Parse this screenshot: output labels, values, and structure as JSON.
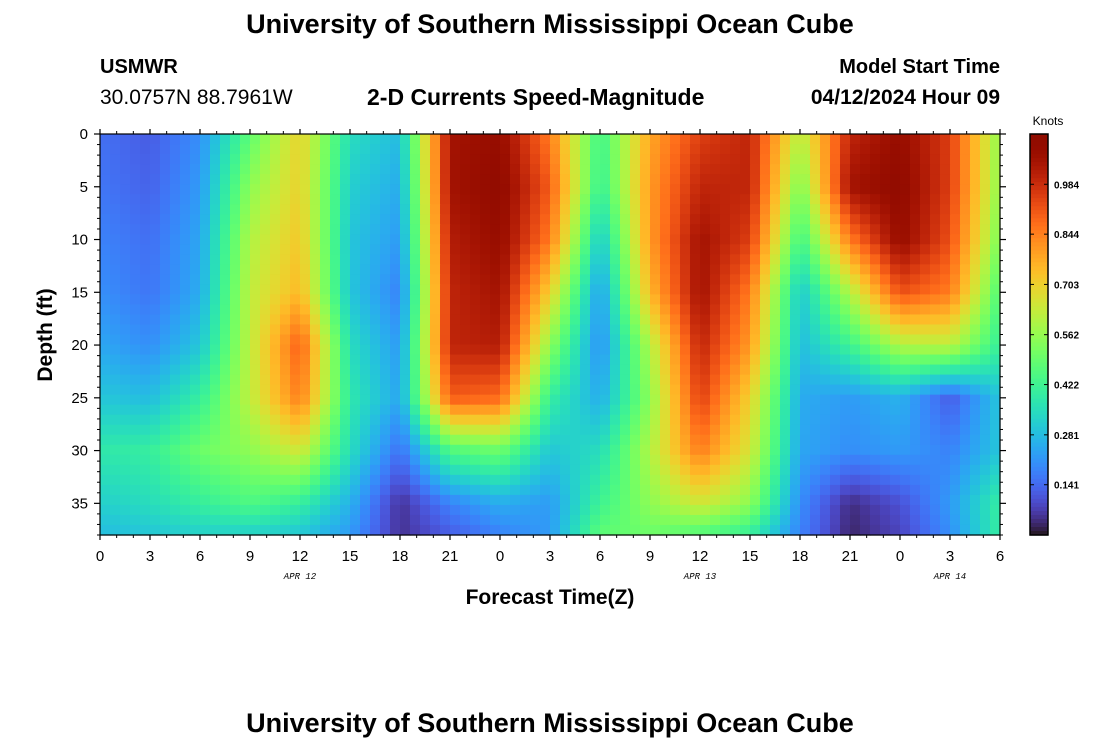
{
  "header": {
    "title": "University of Southern Mississippi Ocean Cube",
    "station_id": "USMWR",
    "station_coords": "30.0757N  88.7961W",
    "plot_title": "2-D Currents Speed-Magnitude",
    "model_start_label": "Model Start Time",
    "model_start_time": "04/12/2024 Hour 09"
  },
  "footer": {
    "title": "University of Southern Mississippi Ocean Cube"
  },
  "chart_data": {
    "type": "heatmap",
    "title": "2-D Currents Speed-Magnitude",
    "xlabel": "Forecast Time(Z)",
    "ylabel": "Depth (ft)",
    "x_unit": "hours since 2024-04-12 00Z",
    "xlim": [
      0,
      54
    ],
    "ylim": [
      0,
      38
    ],
    "y_inverted": true,
    "x_tick_values": [
      0,
      3,
      6,
      9,
      12,
      15,
      18,
      21,
      24,
      27,
      30,
      33,
      36,
      39,
      42,
      45,
      48,
      51,
      54
    ],
    "x_tick_labels": [
      "0",
      "3",
      "6",
      "9",
      "12",
      "15",
      "18",
      "21",
      "0",
      "3",
      "6",
      "9",
      "12",
      "15",
      "18",
      "21",
      "0",
      "3",
      "6"
    ],
    "date_labels": [
      {
        "text": "APR 12",
        "x": 12
      },
      {
        "text": "APR 13",
        "x": 36
      },
      {
        "text": "APR 14",
        "x": 51
      }
    ],
    "y_ticks": [
      0,
      5,
      10,
      15,
      20,
      25,
      30,
      35
    ],
    "colorbar": {
      "label": "Knots",
      "min": 0,
      "max": 1.125,
      "ticks": [
        0.141,
        0.281,
        0.422,
        0.562,
        0.703,
        0.844,
        0.984
      ],
      "colormap": "turbo"
    },
    "depths": [
      0,
      5,
      10,
      15,
      20,
      25,
      30,
      35,
      38
    ],
    "times": [
      0,
      3,
      6,
      9,
      12,
      15,
      18,
      21,
      24,
      27,
      30,
      33,
      36,
      39,
      42,
      45,
      48,
      51,
      54
    ],
    "values": [
      [
        0.15,
        0.12,
        0.2,
        0.48,
        0.7,
        0.35,
        0.28,
        1.05,
        1.08,
        0.85,
        0.42,
        0.78,
        0.95,
        1.0,
        0.6,
        1.0,
        1.08,
        0.95,
        0.55
      ],
      [
        0.16,
        0.13,
        0.22,
        0.55,
        0.7,
        0.32,
        0.25,
        1.05,
        1.1,
        0.9,
        0.4,
        0.8,
        1.0,
        1.0,
        0.52,
        1.05,
        1.1,
        0.95,
        0.55
      ],
      [
        0.18,
        0.15,
        0.24,
        0.6,
        0.72,
        0.3,
        0.22,
        1.02,
        1.08,
        0.85,
        0.3,
        0.8,
        1.05,
        0.95,
        0.42,
        0.85,
        1.08,
        0.92,
        0.52
      ],
      [
        0.2,
        0.16,
        0.25,
        0.62,
        0.75,
        0.3,
        0.18,
        1.0,
        1.05,
        0.7,
        0.22,
        0.75,
        1.05,
        0.85,
        0.3,
        0.6,
        0.92,
        0.85,
        0.45
      ],
      [
        0.24,
        0.2,
        0.3,
        0.62,
        0.9,
        0.35,
        0.22,
        1.0,
        1.02,
        0.55,
        0.2,
        0.6,
        1.0,
        0.8,
        0.28,
        0.42,
        0.6,
        0.62,
        0.4
      ],
      [
        0.3,
        0.28,
        0.4,
        0.62,
        0.85,
        0.38,
        0.24,
        0.9,
        0.88,
        0.4,
        0.25,
        0.55,
        0.95,
        0.7,
        0.25,
        0.22,
        0.26,
        0.12,
        0.3
      ],
      [
        0.38,
        0.4,
        0.5,
        0.55,
        0.65,
        0.35,
        0.15,
        0.45,
        0.5,
        0.3,
        0.35,
        0.6,
        0.85,
        0.65,
        0.24,
        0.2,
        0.22,
        0.18,
        0.3
      ],
      [
        0.32,
        0.35,
        0.4,
        0.45,
        0.4,
        0.26,
        0.05,
        0.18,
        0.25,
        0.22,
        0.42,
        0.55,
        0.65,
        0.55,
        0.2,
        0.04,
        0.1,
        0.22,
        0.4
      ],
      [
        0.28,
        0.3,
        0.32,
        0.32,
        0.3,
        0.22,
        0.05,
        0.12,
        0.18,
        0.22,
        0.48,
        0.5,
        0.45,
        0.4,
        0.18,
        0.03,
        0.08,
        0.2,
        0.4
      ]
    ]
  }
}
